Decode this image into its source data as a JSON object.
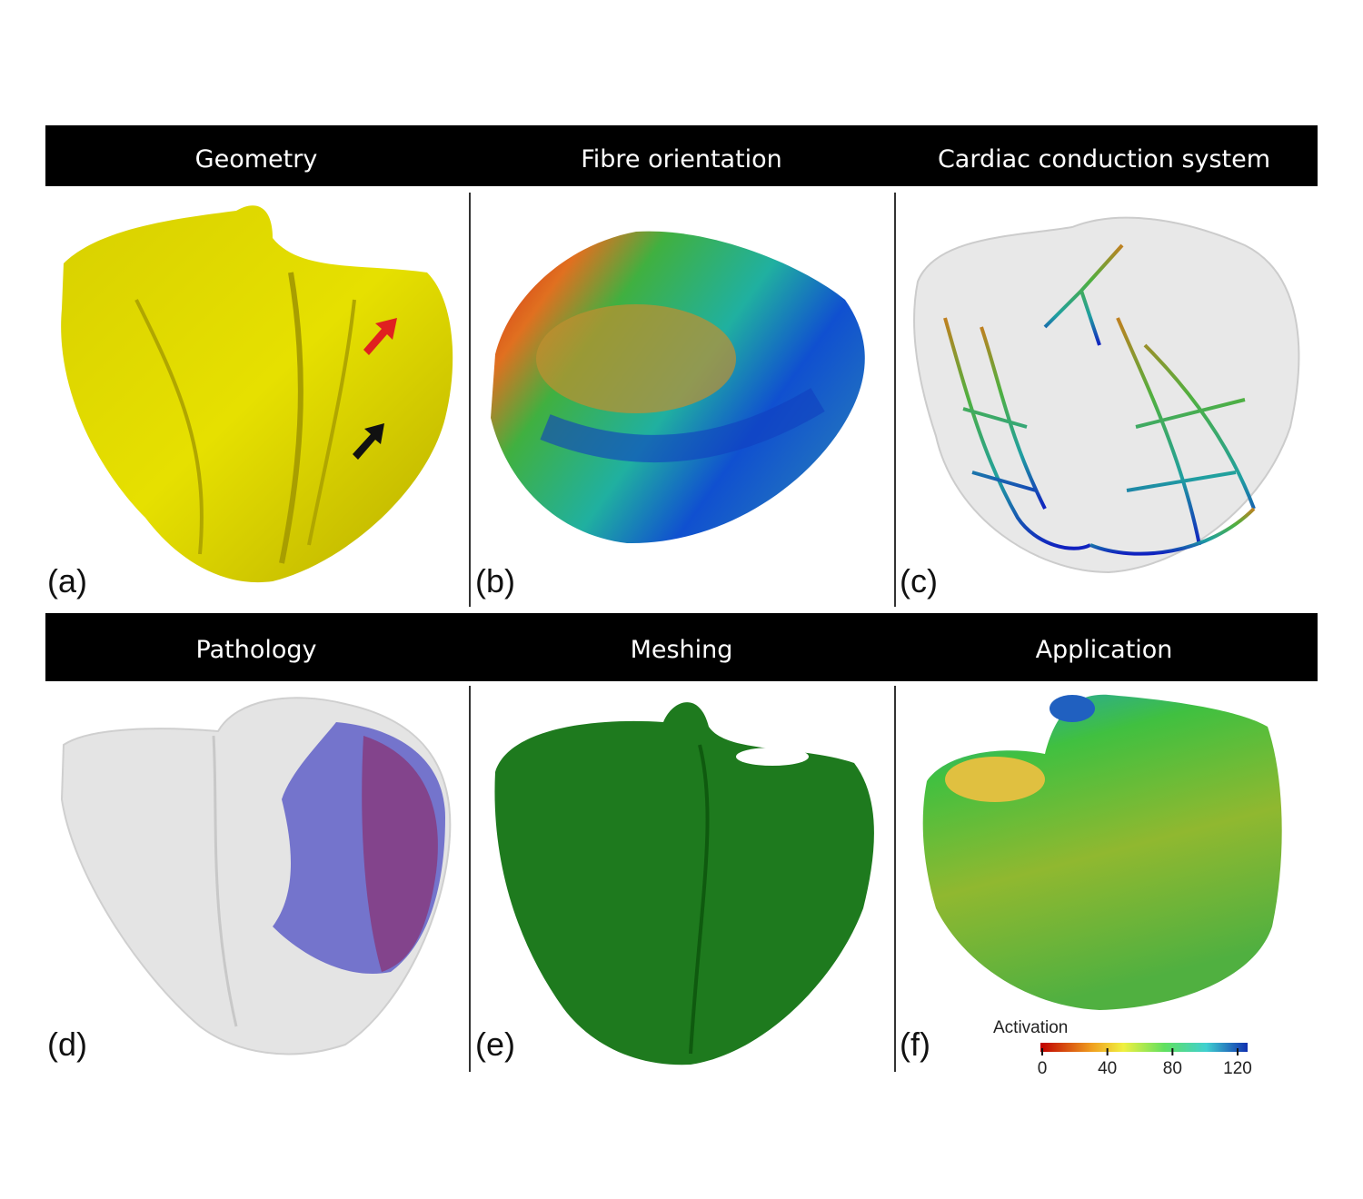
{
  "header_rows": [
    [
      "Geometry",
      "Fibre orientation",
      "Cardiac conduction system"
    ],
    [
      "Pathology",
      "Meshing",
      "Application"
    ]
  ],
  "panel_labels": [
    "(a)",
    "(b)",
    "(c)",
    "(d)",
    "(e)",
    "(f)"
  ],
  "colorbar": {
    "title": "Activation",
    "ticks": [
      0,
      40,
      80,
      120
    ]
  }
}
